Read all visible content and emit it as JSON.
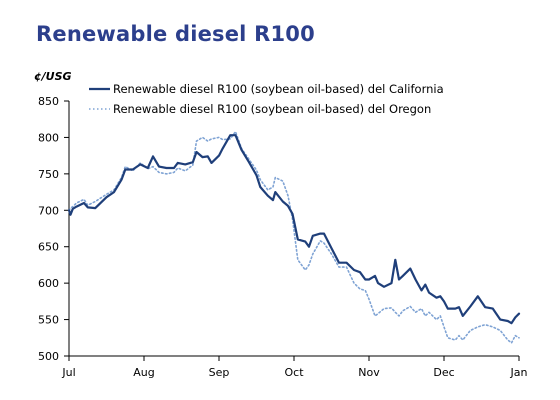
{
  "title": "Renewable diesel R100",
  "chart_data": {
    "type": "line",
    "title": "Renewable diesel R100",
    "ylabel": "¢/USG",
    "xlabel": "",
    "x_ticks": [
      "Jul",
      "Aug",
      "Sep",
      "Oct",
      "Nov",
      "Dec",
      "Jan"
    ],
    "x_range": [
      "Jul",
      "Jan"
    ],
    "y_ticks": [
      500,
      550,
      600,
      650,
      700,
      750,
      800,
      850
    ],
    "ylim": [
      500,
      850
    ],
    "grid": false,
    "legend": "top-right",
    "series": [
      {
        "name": "Renewable diesel R100 (soybean oil-based) del California",
        "color": "#1f3f7a",
        "style": "solid",
        "points": [
          [
            0.0,
            700
          ],
          [
            0.02,
            694
          ],
          [
            0.05,
            702
          ],
          [
            0.1,
            705
          ],
          [
            0.2,
            710
          ],
          [
            0.25,
            704
          ],
          [
            0.35,
            703
          ],
          [
            0.5,
            718
          ],
          [
            0.6,
            725
          ],
          [
            0.7,
            742
          ],
          [
            0.75,
            756
          ],
          [
            0.85,
            756
          ],
          [
            0.95,
            763
          ],
          [
            1.05,
            758
          ],
          [
            1.12,
            774
          ],
          [
            1.2,
            760
          ],
          [
            1.3,
            758
          ],
          [
            1.4,
            758
          ],
          [
            1.45,
            765
          ],
          [
            1.55,
            763
          ],
          [
            1.65,
            766
          ],
          [
            1.7,
            780
          ],
          [
            1.78,
            773
          ],
          [
            1.85,
            774
          ],
          [
            1.9,
            765
          ],
          [
            2.0,
            775
          ],
          [
            2.05,
            785
          ],
          [
            2.15,
            803
          ],
          [
            2.22,
            803
          ],
          [
            2.3,
            783
          ],
          [
            2.4,
            766
          ],
          [
            2.5,
            748
          ],
          [
            2.55,
            732
          ],
          [
            2.65,
            720
          ],
          [
            2.72,
            714
          ],
          [
            2.75,
            725
          ],
          [
            2.85,
            712
          ],
          [
            2.92,
            706
          ],
          [
            2.98,
            695
          ],
          [
            3.05,
            660
          ],
          [
            3.15,
            657
          ],
          [
            3.2,
            650
          ],
          [
            3.25,
            665
          ],
          [
            3.35,
            668
          ],
          [
            3.4,
            668
          ],
          [
            3.5,
            648
          ],
          [
            3.6,
            628
          ],
          [
            3.7,
            628
          ],
          [
            3.8,
            618
          ],
          [
            3.88,
            615
          ],
          [
            3.95,
            605
          ],
          [
            4.0,
            605
          ],
          [
            4.08,
            610
          ],
          [
            4.12,
            600
          ],
          [
            4.2,
            595
          ],
          [
            4.3,
            600
          ],
          [
            4.35,
            632
          ],
          [
            4.4,
            605
          ],
          [
            4.45,
            610
          ],
          [
            4.55,
            620
          ],
          [
            4.62,
            605
          ],
          [
            4.7,
            590
          ],
          [
            4.75,
            598
          ],
          [
            4.8,
            587
          ],
          [
            4.9,
            580
          ],
          [
            4.95,
            582
          ],
          [
            5.0,
            575
          ],
          [
            5.05,
            565
          ],
          [
            5.15,
            565
          ],
          [
            5.2,
            567
          ],
          [
            5.25,
            555
          ],
          [
            5.35,
            568
          ],
          [
            5.45,
            582
          ],
          [
            5.55,
            567
          ],
          [
            5.65,
            565
          ],
          [
            5.75,
            550
          ],
          [
            5.85,
            548
          ],
          [
            5.9,
            545
          ],
          [
            5.95,
            553
          ],
          [
            6.0,
            558
          ]
        ]
      },
      {
        "name": "Renewable diesel R100 (soybean oil-based) del Oregon",
        "color": "#7fa3d4",
        "style": "dotted",
        "points": [
          [
            0.0,
            700
          ],
          [
            0.02,
            703
          ],
          [
            0.05,
            705
          ],
          [
            0.1,
            710
          ],
          [
            0.2,
            715
          ],
          [
            0.25,
            707
          ],
          [
            0.35,
            712
          ],
          [
            0.5,
            722
          ],
          [
            0.6,
            728
          ],
          [
            0.7,
            745
          ],
          [
            0.75,
            760
          ],
          [
            0.85,
            754
          ],
          [
            0.95,
            765
          ],
          [
            1.05,
            757
          ],
          [
            1.12,
            760
          ],
          [
            1.2,
            752
          ],
          [
            1.3,
            750
          ],
          [
            1.4,
            752
          ],
          [
            1.45,
            758
          ],
          [
            1.55,
            754
          ],
          [
            1.65,
            762
          ],
          [
            1.7,
            795
          ],
          [
            1.78,
            800
          ],
          [
            1.85,
            795
          ],
          [
            1.9,
            798
          ],
          [
            2.0,
            800
          ],
          [
            2.05,
            797
          ],
          [
            2.15,
            798
          ],
          [
            2.22,
            808
          ],
          [
            2.3,
            785
          ],
          [
            2.4,
            770
          ],
          [
            2.5,
            755
          ],
          [
            2.55,
            742
          ],
          [
            2.65,
            728
          ],
          [
            2.72,
            732
          ],
          [
            2.75,
            745
          ],
          [
            2.85,
            740
          ],
          [
            2.92,
            720
          ],
          [
            2.98,
            688
          ],
          [
            3.05,
            632
          ],
          [
            3.15,
            618
          ],
          [
            3.2,
            625
          ],
          [
            3.25,
            640
          ],
          [
            3.35,
            658
          ],
          [
            3.4,
            655
          ],
          [
            3.5,
            640
          ],
          [
            3.6,
            622
          ],
          [
            3.7,
            622
          ],
          [
            3.8,
            600
          ],
          [
            3.88,
            592
          ],
          [
            3.95,
            590
          ],
          [
            4.0,
            578
          ],
          [
            4.08,
            555
          ],
          [
            4.12,
            558
          ],
          [
            4.2,
            565
          ],
          [
            4.3,
            566
          ],
          [
            4.35,
            560
          ],
          [
            4.4,
            555
          ],
          [
            4.45,
            562
          ],
          [
            4.55,
            568
          ],
          [
            4.62,
            560
          ],
          [
            4.7,
            565
          ],
          [
            4.75,
            555
          ],
          [
            4.8,
            560
          ],
          [
            4.9,
            550
          ],
          [
            4.95,
            555
          ],
          [
            5.0,
            540
          ],
          [
            5.05,
            525
          ],
          [
            5.15,
            522
          ],
          [
            5.2,
            528
          ],
          [
            5.25,
            522
          ],
          [
            5.35,
            535
          ],
          [
            5.45,
            540
          ],
          [
            5.55,
            543
          ],
          [
            5.65,
            540
          ],
          [
            5.75,
            535
          ],
          [
            5.85,
            522
          ],
          [
            5.9,
            518
          ],
          [
            5.95,
            528
          ],
          [
            6.0,
            525
          ]
        ]
      }
    ]
  }
}
